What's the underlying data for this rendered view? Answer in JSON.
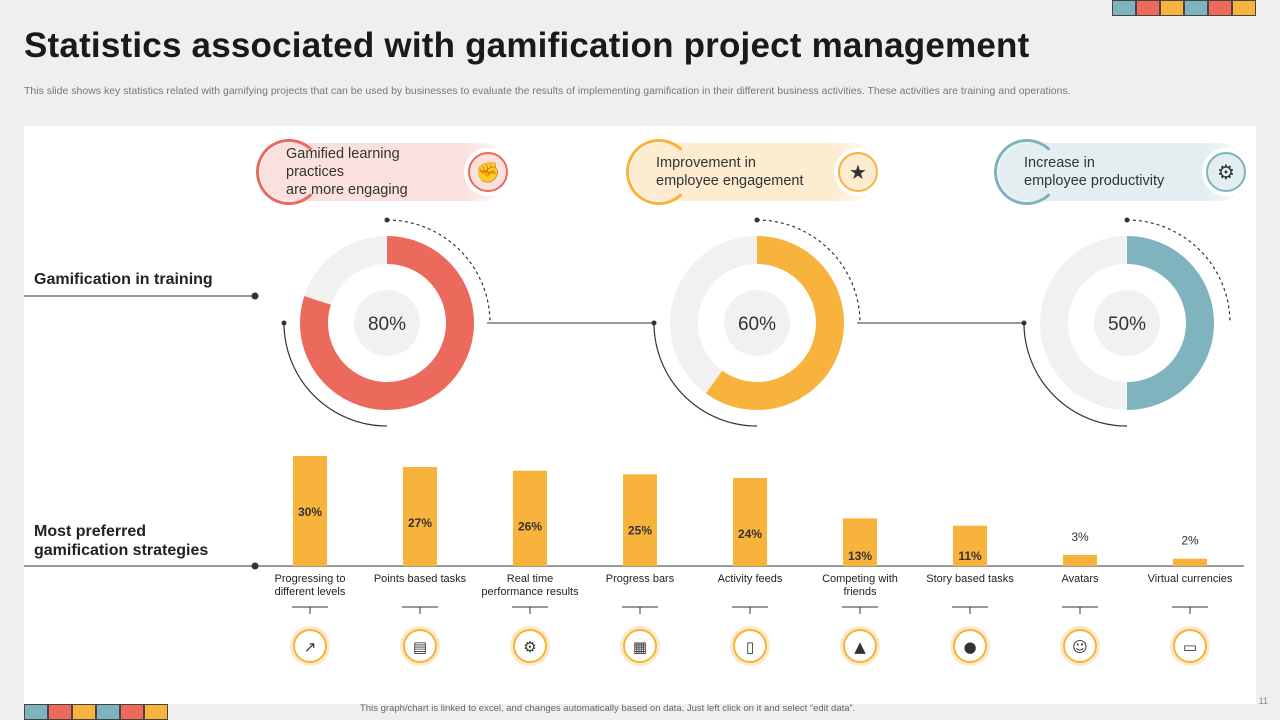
{
  "slide": {
    "title": "Statistics associated with gamification project management",
    "subtitle": "This slide shows key statistics related with gamifying projects that can be used by businesses to evaluate the results of implementing gamification in their different business activities. These activities are training and operations.",
    "footer": "This graph/chart is linked to excel, and changes automatically based on data. Just left click on it and select “edit data”.",
    "page_number": "11"
  },
  "colors": {
    "red": "#ec6a5c",
    "orange": "#f8b33c",
    "teal": "#7fb3be",
    "track": "#f1f1f1",
    "strip": [
      "#7fb3be",
      "#ec6a5c",
      "#f8b33c",
      "#7fb3be",
      "#ec6a5c",
      "#f8b33c"
    ]
  },
  "row_labels": {
    "training": "Gamification in training",
    "strategies_line1": "Most preferred",
    "strategies_line2": "gamification strategies"
  },
  "pills": [
    {
      "line1": "Gamified learning practices",
      "line2": "are more engaging",
      "icon": "raised-hands-icon",
      "color": "red"
    },
    {
      "line1": "Improvement in",
      "line2": "employee engagement",
      "icon": "team-thumbs-up-icon",
      "color": "orange"
    },
    {
      "line1": "Increase in",
      "line2": "employee productivity",
      "icon": "productivity-person-gear-icon",
      "color": "teal"
    }
  ],
  "chart_data": [
    {
      "type": "pie",
      "variant": "donut",
      "name": "Gamified learning practices are more engaging",
      "value": 80,
      "label": "80%",
      "color": "#ec6a5c"
    },
    {
      "type": "pie",
      "variant": "donut",
      "name": "Improvement in employee engagement",
      "value": 60,
      "label": "60%",
      "color": "#f8b33c"
    },
    {
      "type": "pie",
      "variant": "donut",
      "name": "Increase in employee productivity",
      "value": 50,
      "label": "50%",
      "color": "#7fb3be"
    },
    {
      "type": "bar",
      "title": "Most preferred gamification strategies",
      "categories": [
        [
          "Progressing to",
          "different levels"
        ],
        [
          "Points based tasks"
        ],
        [
          "Real time",
          "performance results"
        ],
        [
          "Progress bars"
        ],
        [
          "Activity feeds"
        ],
        [
          "Competing with",
          "friends"
        ],
        [
          "Story based tasks"
        ],
        [
          "Avatars"
        ],
        [
          "Virtual currencies"
        ]
      ],
      "values": [
        30,
        27,
        26,
        25,
        24,
        13,
        11,
        3,
        2
      ],
      "labels": [
        "30%",
        "27%",
        "26%",
        "25%",
        "24%",
        "13%",
        "11%",
        "3%",
        "2%"
      ],
      "icons": [
        "growth-chart-icon",
        "book-icon",
        "gear-clock-icon",
        "dashboard-chart-icon",
        "mobile-feed-icon",
        "podium-icon",
        "group-people-icon",
        "avatar-icon",
        "money-icon"
      ],
      "ylim": [
        0,
        30
      ],
      "color": "#f8b33c"
    }
  ]
}
